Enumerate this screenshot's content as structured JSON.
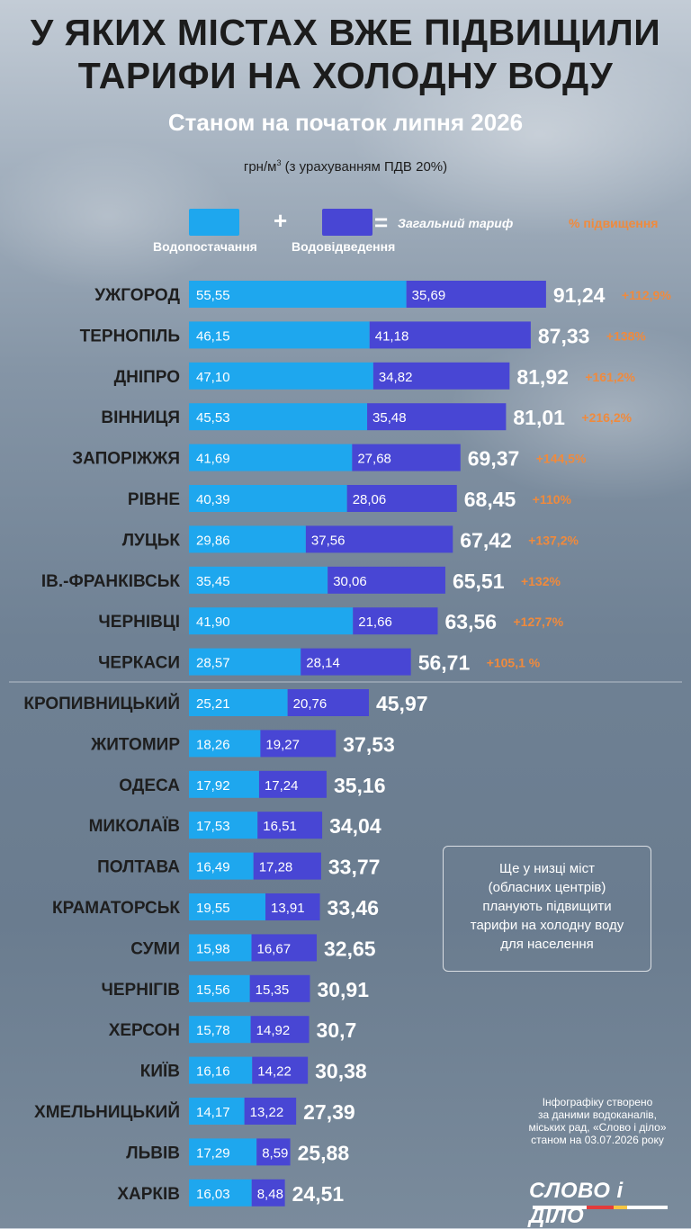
{
  "title_line1": "У ЯКИХ МІСТАХ ВЖЕ ПІДВИЩИЛИ",
  "title_line2": "ТАРИФИ НА ХОЛОДНУ ВОДУ",
  "subtitle": "Станом на початок липня 2026",
  "units_text": "грн/м",
  "units_sup": "3",
  "units_rest": " (з урахуванням ПДВ 20%)",
  "legend": {
    "supply": "Водопостачання",
    "plus": "+",
    "drainage": "Водовідведення",
    "equals": "=",
    "total": "Загальний тариф",
    "increase": "% підвищення"
  },
  "colors": {
    "supply": "#1ea7ee",
    "drainage": "#4846d4",
    "increase": "#f08a3c",
    "city": "#1e1e1e",
    "total": "#ffffff"
  },
  "note": [
    "Ще у низці міст",
    "(обласних центрів)",
    "планують підвищити",
    "тарифи на холодну воду",
    "для населення"
  ],
  "source": [
    "Інфографіку створено",
    "за даними водоканалів,",
    "міських рад, «Слово і діло»",
    "станом на 03.07.2026 року"
  ],
  "logo": "СЛОВО і ДІЛО",
  "chart_data": {
    "type": "bar",
    "orientation": "horizontal",
    "stacked": true,
    "categories": [
      "УЖГОРОД",
      "ТЕРНОПІЛЬ",
      "ДНІПРО",
      "ВІННИЦЯ",
      "ЗАПОРІЖЖЯ",
      "РІВНЕ",
      "ЛУЦЬК",
      "ІВ.-ФРАНКІВСЬК",
      "ЧЕРНІВЦІ",
      "ЧЕРКАСИ",
      "КРОПИВНИЦЬКИЙ",
      "ЖИТОМИР",
      "ОДЕСА",
      "МИКОЛАЇВ",
      "ПОЛТАВА",
      "КРАМАТОРСЬК",
      "СУМИ",
      "ЧЕРНІГІВ",
      "ХЕРСОН",
      "КИЇВ",
      "ХМЕЛЬНИЦЬКИЙ",
      "ЛЬВІВ",
      "ХАРКІВ"
    ],
    "series": [
      {
        "name": "Водопостачання",
        "values": [
          "55,55",
          "46,15",
          "47,10",
          "45,53",
          "41,69",
          "40,39",
          "29,86",
          "35,45",
          "41,90",
          "28,57",
          "25,21",
          "18,26",
          "17,92",
          "17,53",
          "16,49",
          "19,55",
          "15,98",
          "15,56",
          "15,78",
          "16,16",
          "14,17",
          "17,29",
          "16,03"
        ]
      },
      {
        "name": "Водовідведення",
        "values": [
          "35,69",
          "41,18",
          "34,82",
          "35,48",
          "27,68",
          "28,06",
          "37,56",
          "30,06",
          "21,66",
          "28,14",
          "20,76",
          "19,27",
          "17,24",
          "16,51",
          "17,28",
          "13,91",
          "16,67",
          "15,35",
          "14,92",
          "14,22",
          "13,22",
          "8,59",
          "8,48"
        ]
      }
    ],
    "totals": [
      "91,24",
      "87,33",
      "81,92",
      "81,01",
      "69,37",
      "68,45",
      "67,42",
      "65,51",
      "63,56",
      "56,71",
      "45,97",
      "37,53",
      "35,16",
      "34,04",
      "33,77",
      "33,46",
      "32,65",
      "30,91",
      "30,7",
      "30,38",
      "27,39",
      "25,88",
      "24,51"
    ],
    "increase": [
      "+112,9%",
      "+138%",
      "+161,2%",
      "+216,2%",
      "+144,5%",
      "+110%",
      "+137,2%",
      "+132%",
      "+127,7%",
      "+105,1 %",
      "",
      "",
      "",
      "",
      "",
      "",
      "",
      "",
      "",
      "",
      "",
      "",
      ""
    ]
  }
}
